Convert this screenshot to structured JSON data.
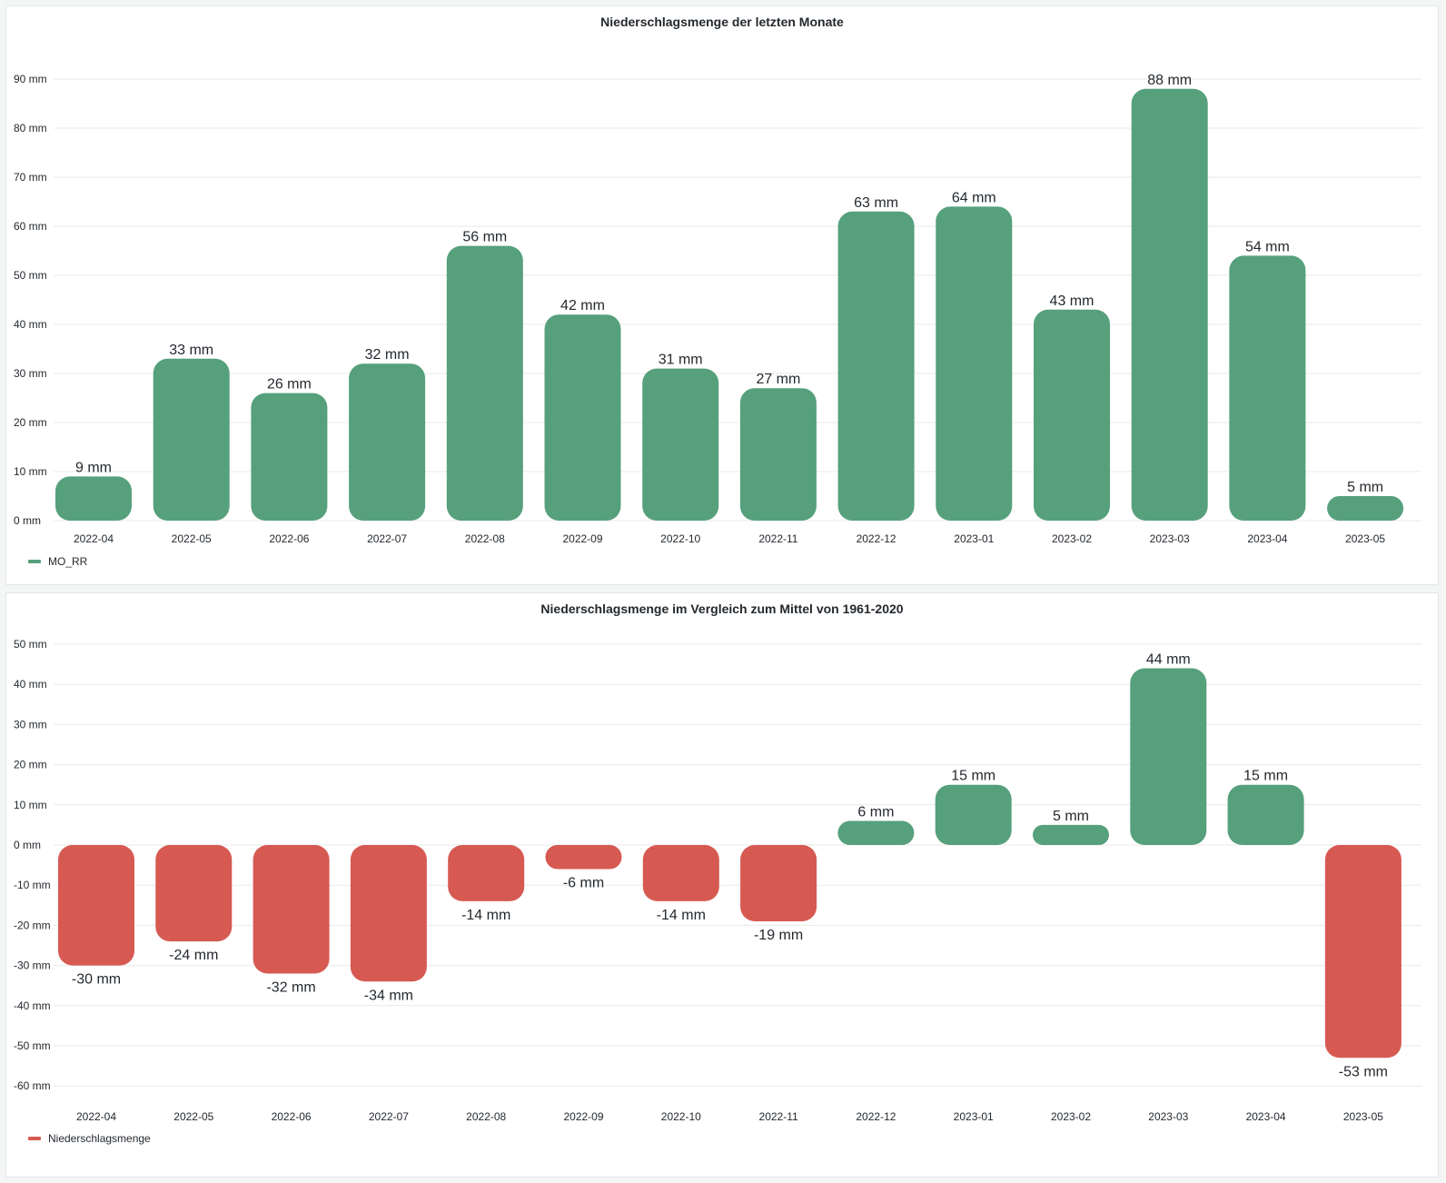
{
  "colors": {
    "positive": "#56a07c",
    "negative": "#d65a52",
    "grid": "#e8e9ea"
  },
  "panel1": {
    "title": "Niederschlagsmenge der letzten Monate",
    "legend": "MO_RR"
  },
  "panel2": {
    "title": "Niederschlagsmenge im Vergleich zum Mittel von 1961-2020",
    "legend": "Niederschlagsmenge"
  },
  "chart_data": [
    {
      "type": "bar",
      "title": "Niederschlagsmenge der letzten Monate",
      "categories": [
        "2022-04",
        "2022-05",
        "2022-06",
        "2022-07",
        "2022-08",
        "2022-09",
        "2022-10",
        "2022-11",
        "2022-12",
        "2023-01",
        "2023-02",
        "2023-03",
        "2023-04",
        "2023-05"
      ],
      "series": [
        {
          "name": "MO_RR",
          "values": [
            9,
            33,
            26,
            32,
            56,
            42,
            31,
            27,
            63,
            64,
            43,
            88,
            54,
            5
          ]
        }
      ],
      "labels": [
        "9 mm",
        "33 mm",
        "26 mm",
        "32 mm",
        "56 mm",
        "42 mm",
        "31 mm",
        "27 mm",
        "63 mm",
        "64 mm",
        "43 mm",
        "88 mm",
        "54 mm",
        "5 mm"
      ],
      "yticks": [
        "0 mm",
        "10 mm",
        "20 mm",
        "30 mm",
        "40 mm",
        "50 mm",
        "60 mm",
        "70 mm",
        "80 mm",
        "90 mm"
      ],
      "ytick_values": [
        0,
        10,
        20,
        30,
        40,
        50,
        60,
        70,
        80,
        90
      ],
      "ylim": [
        0,
        90
      ],
      "grid": true,
      "legend_position": "bottom-left"
    },
    {
      "type": "bar",
      "title": "Niederschlagsmenge im Vergleich zum Mittel von 1961-2020",
      "categories": [
        "2022-04",
        "2022-05",
        "2022-06",
        "2022-07",
        "2022-08",
        "2022-09",
        "2022-10",
        "2022-11",
        "2022-12",
        "2023-01",
        "2023-02",
        "2023-03",
        "2023-04",
        "2023-05"
      ],
      "series": [
        {
          "name": "Niederschlagsmenge",
          "values": [
            -30,
            -24,
            -32,
            -34,
            -14,
            -6,
            -14,
            -19,
            6,
            15,
            5,
            44,
            15,
            -53
          ]
        }
      ],
      "labels": [
        "-30 mm",
        "-24 mm",
        "-32 mm",
        "-34 mm",
        "-14 mm",
        "-6 mm",
        "-14 mm",
        "-19 mm",
        "6 mm",
        "15 mm",
        "5 mm",
        "44 mm",
        "15 mm",
        "-53 mm"
      ],
      "yticks": [
        "50 mm",
        "40 mm",
        "30 mm",
        "20 mm",
        "10 mm",
        "0 mm",
        "-10 mm",
        "-20 mm",
        "-30 mm",
        "-40 mm",
        "-50 mm",
        "-60 mm"
      ],
      "ytick_values": [
        50,
        40,
        30,
        20,
        10,
        0,
        -10,
        -20,
        -30,
        -40,
        -50,
        -60
      ],
      "ylim": [
        -60,
        50
      ],
      "grid": true,
      "legend_position": "bottom-left"
    }
  ]
}
